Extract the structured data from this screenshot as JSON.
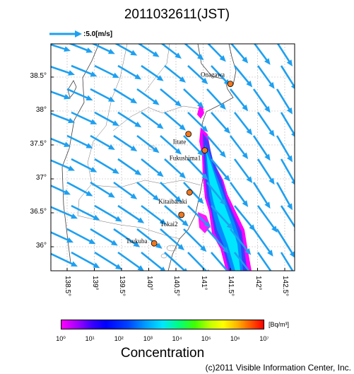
{
  "title": "2011032611(JST)",
  "scale_label": ":5.0[m/s]",
  "lat_labels": [
    "38.5°",
    "38°",
    "37.5°",
    "37°",
    "36.5°",
    "36°"
  ],
  "lon_labels": [
    "138.5°",
    "139°",
    "139.5°",
    "140°",
    "140.5°",
    "141°",
    "141.5°",
    "142°",
    "142.5°"
  ],
  "places": [
    {
      "name": "Onagawa",
      "lon": 141.5,
      "lat": 38.4
    },
    {
      "name": "Iitate",
      "lon": 140.73,
      "lat": 37.66
    },
    {
      "name": "Fukushima1",
      "lon": 141.03,
      "lat": 37.42
    },
    {
      "name": "Kitaibaraki",
      "lon": 140.75,
      "lat": 36.8
    },
    {
      "name": "Tokai2",
      "lon": 140.6,
      "lat": 36.47
    },
    {
      "name": "Tsukuba",
      "lon": 140.1,
      "lat": 36.05
    }
  ],
  "colorbar": {
    "unit_html": "[Bq/m³]",
    "ticks": [
      "10⁰",
      "10¹",
      "10²",
      "10³",
      "10⁴",
      "10⁵",
      "10⁶",
      "10⁷"
    ]
  },
  "colorbar_title": "Concentration",
  "copyright": "(c)2011 Visible Information Center, Inc.",
  "colors": {
    "wind": "#1ea0f0",
    "marker": "#f07820",
    "plume_core": "#00e6ff"
  }
}
